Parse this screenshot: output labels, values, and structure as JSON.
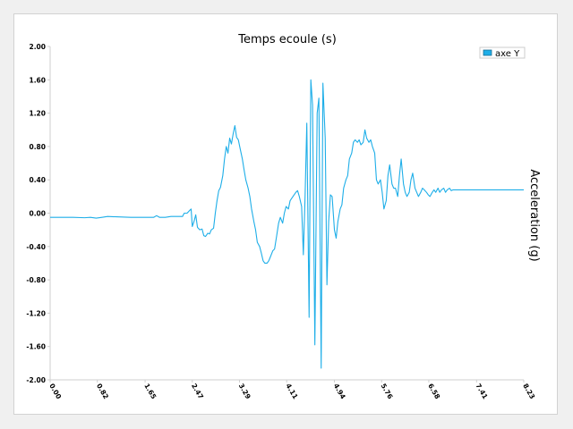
{
  "chart_data": {
    "type": "line",
    "title": "Temps ecoule (s)",
    "ylabel": "Acceleration (g)",
    "xlim": [
      0.0,
      8.23
    ],
    "ylim": [
      -2.0,
      2.0
    ],
    "grid": false,
    "legend_position": "top-right",
    "y_ticks": [
      "2.00",
      "1.60",
      "1.20",
      "0.80",
      "0.40",
      "0.00",
      "-0.40",
      "-0.80",
      "-1.20",
      "-1.60",
      "-2.00"
    ],
    "x_ticks": [
      "0.00",
      "0.82",
      "1.65",
      "2.47",
      "3.29",
      "4.11",
      "4.94",
      "5.76",
      "6.58",
      "7.41",
      "8.23"
    ],
    "series": [
      {
        "name": "axe Y",
        "color": "#1eaee8",
        "points": [
          [
            0.0,
            -0.05
          ],
          [
            0.2,
            -0.05
          ],
          [
            0.4,
            -0.05
          ],
          [
            0.6,
            -0.055
          ],
          [
            0.7,
            -0.05
          ],
          [
            0.8,
            -0.06
          ],
          [
            0.9,
            -0.05
          ],
          [
            1.0,
            -0.04
          ],
          [
            1.2,
            -0.045
          ],
          [
            1.4,
            -0.05
          ],
          [
            1.6,
            -0.05
          ],
          [
            1.8,
            -0.05
          ],
          [
            1.85,
            -0.03
          ],
          [
            1.9,
            -0.05
          ],
          [
            2.0,
            -0.05
          ],
          [
            2.1,
            -0.04
          ],
          [
            2.3,
            -0.04
          ],
          [
            2.33,
            0.0
          ],
          [
            2.38,
            0.0
          ],
          [
            2.42,
            0.03
          ],
          [
            2.45,
            0.05
          ],
          [
            2.47,
            -0.16
          ],
          [
            2.5,
            -0.1
          ],
          [
            2.53,
            -0.02
          ],
          [
            2.56,
            -0.17
          ],
          [
            2.6,
            -0.2
          ],
          [
            2.64,
            -0.19
          ],
          [
            2.67,
            -0.27
          ],
          [
            2.7,
            -0.28
          ],
          [
            2.74,
            -0.24
          ],
          [
            2.77,
            -0.25
          ],
          [
            2.8,
            -0.2
          ],
          [
            2.84,
            -0.18
          ],
          [
            2.87,
            0.0
          ],
          [
            2.9,
            0.15
          ],
          [
            2.93,
            0.27
          ],
          [
            2.96,
            0.31
          ],
          [
            3.0,
            0.45
          ],
          [
            3.03,
            0.65
          ],
          [
            3.06,
            0.8
          ],
          [
            3.09,
            0.72
          ],
          [
            3.12,
            0.9
          ],
          [
            3.15,
            0.83
          ],
          [
            3.18,
            0.95
          ],
          [
            3.21,
            1.05
          ],
          [
            3.24,
            0.91
          ],
          [
            3.27,
            0.88
          ],
          [
            3.3,
            0.78
          ],
          [
            3.34,
            0.65
          ],
          [
            3.37,
            0.52
          ],
          [
            3.4,
            0.4
          ],
          [
            3.44,
            0.3
          ],
          [
            3.47,
            0.2
          ],
          [
            3.5,
            0.05
          ],
          [
            3.54,
            -0.1
          ],
          [
            3.57,
            -0.2
          ],
          [
            3.6,
            -0.35
          ],
          [
            3.64,
            -0.4
          ],
          [
            3.67,
            -0.48
          ],
          [
            3.7,
            -0.57
          ],
          [
            3.73,
            -0.6
          ],
          [
            3.77,
            -0.6
          ],
          [
            3.8,
            -0.57
          ],
          [
            3.83,
            -0.52
          ],
          [
            3.87,
            -0.45
          ],
          [
            3.9,
            -0.43
          ],
          [
            3.93,
            -0.3
          ],
          [
            3.97,
            -0.12
          ],
          [
            4.0,
            -0.05
          ],
          [
            4.04,
            -0.12
          ],
          [
            4.07,
            0.0
          ],
          [
            4.1,
            0.08
          ],
          [
            4.14,
            0.05
          ],
          [
            4.17,
            0.15
          ],
          [
            4.2,
            0.18
          ],
          [
            4.24,
            0.22
          ],
          [
            4.27,
            0.25
          ],
          [
            4.3,
            0.27
          ],
          [
            4.33,
            0.2
          ],
          [
            4.37,
            0.08
          ],
          [
            4.4,
            -0.5
          ],
          [
            4.43,
            0.2
          ],
          [
            4.46,
            1.08
          ],
          [
            4.5,
            -1.25
          ],
          [
            4.53,
            1.6
          ],
          [
            4.56,
            1.3
          ],
          [
            4.6,
            -1.58
          ],
          [
            4.64,
            1.2
          ],
          [
            4.67,
            1.38
          ],
          [
            4.71,
            -1.86
          ],
          [
            4.74,
            1.56
          ],
          [
            4.78,
            0.9
          ],
          [
            4.81,
            -0.86
          ],
          [
            4.84,
            -0.1
          ],
          [
            4.87,
            0.22
          ],
          [
            4.9,
            0.2
          ],
          [
            4.94,
            -0.2
          ],
          [
            4.97,
            -0.3
          ],
          [
            5.0,
            -0.1
          ],
          [
            5.04,
            0.05
          ],
          [
            5.07,
            0.1
          ],
          [
            5.1,
            0.3
          ],
          [
            5.14,
            0.4
          ],
          [
            5.17,
            0.45
          ],
          [
            5.2,
            0.65
          ],
          [
            5.24,
            0.72
          ],
          [
            5.27,
            0.85
          ],
          [
            5.3,
            0.88
          ],
          [
            5.34,
            0.85
          ],
          [
            5.37,
            0.88
          ],
          [
            5.4,
            0.82
          ],
          [
            5.44,
            0.85
          ],
          [
            5.47,
            1.0
          ],
          [
            5.5,
            0.9
          ],
          [
            5.54,
            0.85
          ],
          [
            5.57,
            0.88
          ],
          [
            5.6,
            0.8
          ],
          [
            5.64,
            0.72
          ],
          [
            5.67,
            0.4
          ],
          [
            5.7,
            0.35
          ],
          [
            5.74,
            0.4
          ],
          [
            5.77,
            0.25
          ],
          [
            5.8,
            0.05
          ],
          [
            5.84,
            0.15
          ],
          [
            5.87,
            0.45
          ],
          [
            5.9,
            0.58
          ],
          [
            5.94,
            0.35
          ],
          [
            5.97,
            0.3
          ],
          [
            6.0,
            0.3
          ],
          [
            6.04,
            0.2
          ],
          [
            6.07,
            0.45
          ],
          [
            6.1,
            0.65
          ],
          [
            6.14,
            0.35
          ],
          [
            6.17,
            0.25
          ],
          [
            6.2,
            0.2
          ],
          [
            6.24,
            0.25
          ],
          [
            6.27,
            0.4
          ],
          [
            6.3,
            0.48
          ],
          [
            6.34,
            0.3
          ],
          [
            6.37,
            0.25
          ],
          [
            6.4,
            0.2
          ],
          [
            6.44,
            0.25
          ],
          [
            6.47,
            0.3
          ],
          [
            6.5,
            0.28
          ],
          [
            6.54,
            0.25
          ],
          [
            6.57,
            0.22
          ],
          [
            6.6,
            0.2
          ],
          [
            6.64,
            0.25
          ],
          [
            6.67,
            0.28
          ],
          [
            6.7,
            0.25
          ],
          [
            6.74,
            0.3
          ],
          [
            6.77,
            0.25
          ],
          [
            6.8,
            0.28
          ],
          [
            6.84,
            0.3
          ],
          [
            6.87,
            0.25
          ],
          [
            6.9,
            0.28
          ],
          [
            6.94,
            0.3
          ],
          [
            6.97,
            0.27
          ],
          [
            7.0,
            0.28
          ],
          [
            8.23,
            0.28
          ]
        ]
      }
    ]
  }
}
